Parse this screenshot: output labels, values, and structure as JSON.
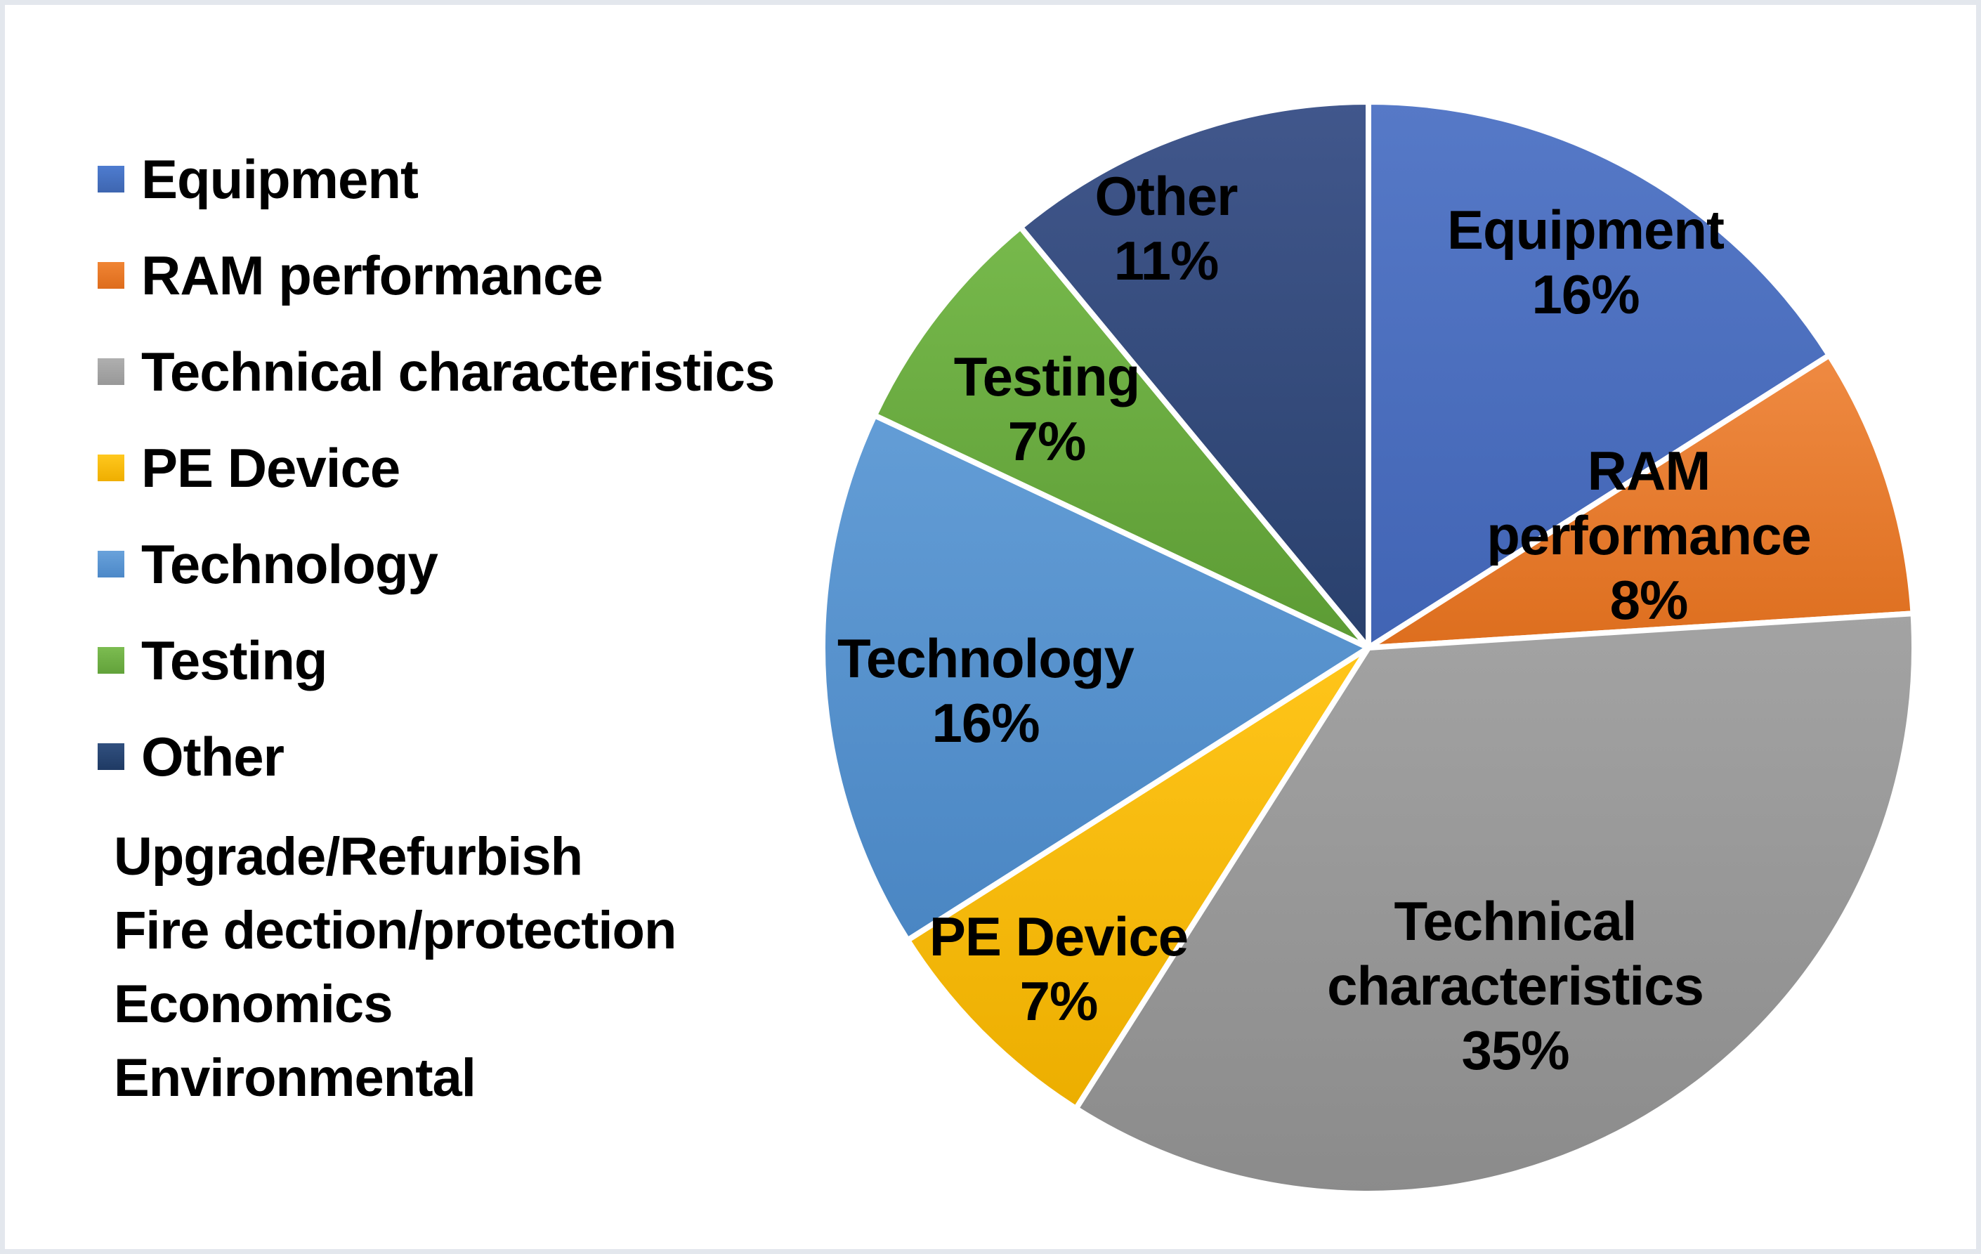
{
  "page": {
    "background": "#ffffff",
    "frame_color": "#e3e7ed",
    "frame_hairline_color": "#aab1bb"
  },
  "legend": {
    "items": [
      {
        "label": "Equipment",
        "color_top": "#4e7cd0",
        "color_bottom": "#3e66b0"
      },
      {
        "label": "RAM performance",
        "color_top": "#f08534",
        "color_bottom": "#de6c1c"
      },
      {
        "label": "Technical characteristics",
        "color_top": "#afafaf",
        "color_bottom": "#989898"
      },
      {
        "label": "PE Device",
        "color_top": "#ffc81e",
        "color_bottom": "#efae00"
      },
      {
        "label": "Technology",
        "color_top": "#69a2db",
        "color_bottom": "#4c88c8"
      },
      {
        "label": "Testing",
        "color_top": "#7cbc51",
        "color bottom_": "",
        "color_bottom": "#62a23a"
      },
      {
        "label": "Other",
        "color_top": "#31507f",
        "color_bottom": "#1f3a64"
      }
    ],
    "extra_items": [
      "Upgrade/Refurbish",
      "Fire dection/protection",
      "Economics",
      "Environmental"
    ]
  },
  "chart_data": {
    "type": "pie",
    "title": "",
    "direction": "clockwise",
    "start_angle_deg": 0,
    "legend_position": "left",
    "data_label_style": "category name and percent inside slices, black bold text",
    "slice_border_color": "#ffffff",
    "categories": [
      "Equipment",
      "RAM performance",
      "Technical characteristics",
      "PE Device",
      "Technology",
      "Testing",
      "Other"
    ],
    "values": [
      16,
      8,
      35,
      7,
      16,
      7,
      11
    ],
    "slices": [
      {
        "label": "Equipment",
        "pct": 16,
        "label_lines": [
          "Equipment",
          "16%"
        ],
        "color_top": "#5679c7",
        "color_bottom": "#4164b4"
      },
      {
        "label": "RAM performance",
        "pct": 8,
        "label_lines": [
          "RAM",
          "performance",
          "8%"
        ],
        "color_top": "#ef8a42",
        "color_bottom": "#dd6e1e"
      },
      {
        "label": "Technical characteristics",
        "pct": 35,
        "label_lines": [
          "Technical",
          "characteristics",
          "35%"
        ],
        "color_top": "#a3a3a3",
        "color_bottom": "#8b8b8b"
      },
      {
        "label": "PE Device",
        "pct": 7,
        "label_lines": [
          "PE Device",
          "7%"
        ],
        "color_top": "#ffc51a",
        "color_bottom": "#ecae00"
      },
      {
        "label": "Technology",
        "pct": 16,
        "label_lines": [
          "Technology",
          "16%"
        ],
        "color_top": "#639dd6",
        "color_bottom": "#4a86c3"
      },
      {
        "label": "Testing",
        "pct": 7,
        "label_lines": [
          "Testing",
          "7%"
        ],
        "color_top": "#77b94c",
        "color_bottom": "#5c9b34"
      },
      {
        "label": "Other",
        "pct": 11,
        "label_lines": [
          "Other",
          "11%"
        ],
        "color_top": "#41578c",
        "color_bottom": "#29406c"
      }
    ]
  }
}
